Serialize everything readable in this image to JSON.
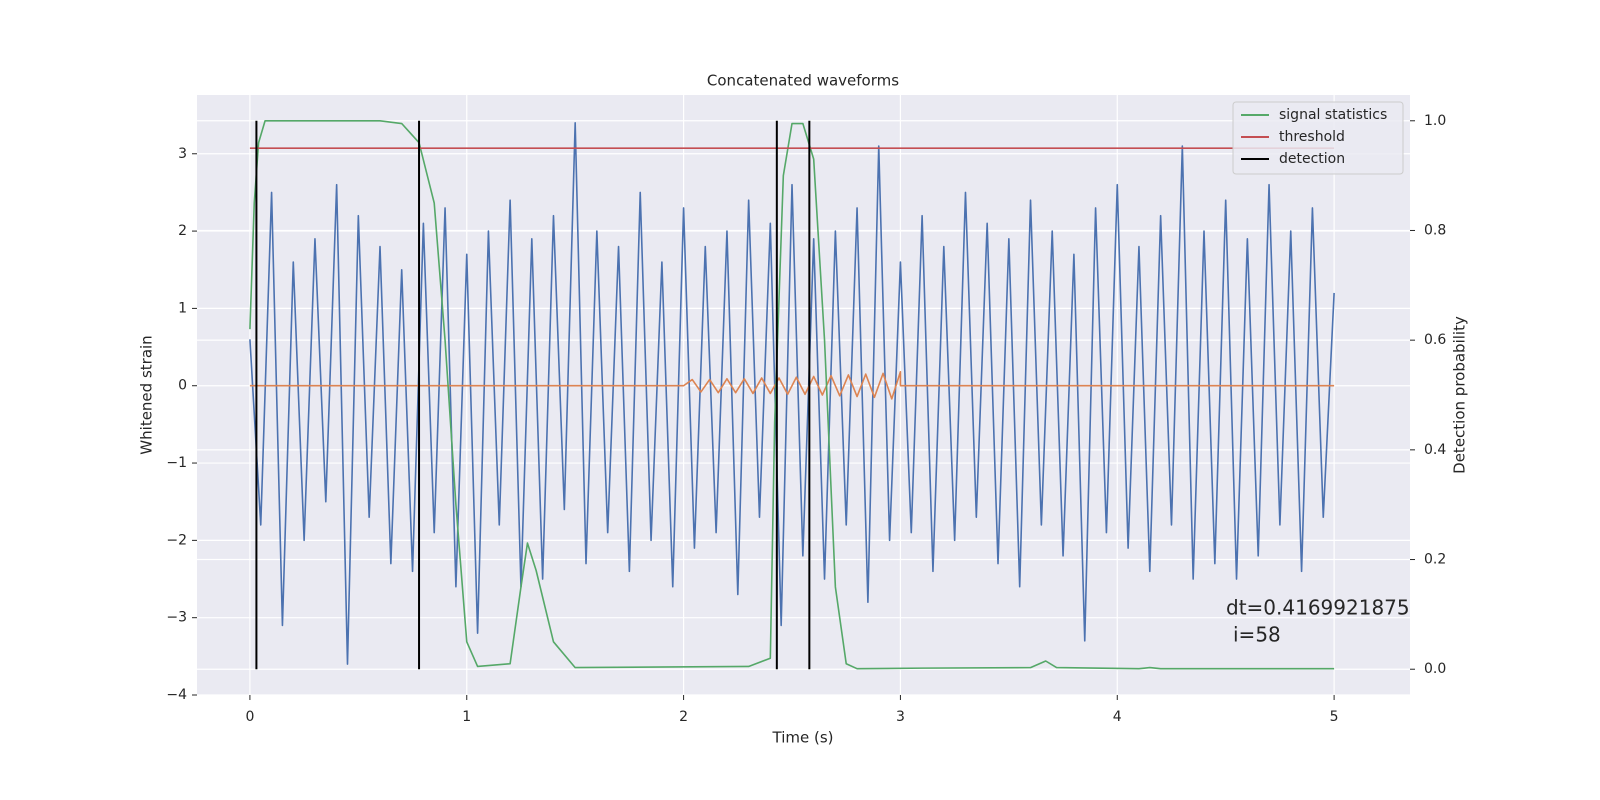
{
  "chart_data": {
    "type": "line",
    "title": "Concatenated waveforms",
    "x_label": "Time (s)",
    "y_label": "Whitened strain",
    "y2_label": "Detection probability",
    "xlim": [
      -0.244,
      5.35
    ],
    "ylim": [
      -4.0,
      3.76
    ],
    "y2lim": [
      -0.047,
      1.047
    ],
    "xticks": [
      0,
      1,
      2,
      3,
      4,
      5
    ],
    "yticks": [
      {
        "value": -4,
        "label": "−4"
      },
      {
        "value": -3,
        "label": "−3"
      },
      {
        "value": -2,
        "label": "−2"
      },
      {
        "value": -1,
        "label": "−1"
      },
      0,
      1,
      2,
      3
    ],
    "y2ticks": [
      {
        "value": 0,
        "label": "0.0"
      },
      {
        "value": 0.2,
        "label": "0.2"
      },
      {
        "value": 0.4,
        "label": "0.4"
      },
      {
        "value": 0.6,
        "label": "0.6"
      },
      {
        "value": 0.8,
        "label": "0.8"
      },
      {
        "value": 1.0,
        "label": "1.0"
      }
    ],
    "grid": true,
    "legend_position": "upper right",
    "annotation": [
      "dt=0.4169921875",
      "i=58"
    ],
    "series": [
      {
        "color": "#4c72b0",
        "axis": "y",
        "x": [
          0,
          0.05,
          0.1,
          0.15,
          0.2,
          0.25,
          0.3,
          0.35,
          0.4,
          0.45,
          0.5,
          0.55,
          0.6,
          0.65,
          0.7,
          0.75,
          0.8,
          0.85,
          0.9,
          0.95,
          1,
          1.05,
          1.1,
          1.15,
          1.2,
          1.25,
          1.3,
          1.35,
          1.4,
          1.45,
          1.5,
          1.55,
          1.6,
          1.65,
          1.7,
          1.75,
          1.8,
          1.85,
          1.9,
          1.95,
          2,
          2.05,
          2.1,
          2.15,
          2.2,
          2.25,
          2.3,
          2.35,
          2.4,
          2.45,
          2.5,
          2.55,
          2.6,
          2.65,
          2.7,
          2.75,
          2.8,
          2.85,
          2.9,
          2.95,
          3,
          3.05,
          3.1,
          3.15,
          3.2,
          3.25,
          3.3,
          3.35,
          3.4,
          3.45,
          3.5,
          3.55,
          3.6,
          3.65,
          3.7,
          3.75,
          3.8,
          3.85,
          3.9,
          3.95,
          4,
          4.05,
          4.1,
          4.15,
          4.2,
          4.25,
          4.3,
          4.35,
          4.4,
          4.45,
          4.5,
          4.55,
          4.6,
          4.65,
          4.7,
          4.75,
          4.8,
          4.85,
          4.9,
          4.95,
          5
        ],
        "values": [
          0.6,
          -1.8,
          2.5,
          -3.1,
          1.6,
          -2.0,
          1.9,
          -1.5,
          2.6,
          -3.6,
          2.2,
          -1.7,
          1.8,
          -2.3,
          1.5,
          -2.4,
          2.1,
          -1.9,
          2.3,
          -2.6,
          1.7,
          -3.2,
          2.0,
          -1.8,
          2.4,
          -2.6,
          1.9,
          -2.5,
          2.2,
          -1.6,
          3.4,
          -2.3,
          2.0,
          -1.9,
          1.8,
          -2.4,
          2.5,
          -2.0,
          1.6,
          -2.6,
          2.3,
          -2.1,
          1.8,
          -1.9,
          2.0,
          -2.7,
          2.4,
          -1.7,
          2.1,
          -3.1,
          2.6,
          -2.2,
          1.9,
          -2.5,
          2.0,
          -1.8,
          2.3,
          -2.8,
          3.1,
          -2.0,
          1.6,
          -1.9,
          2.2,
          -2.4,
          1.8,
          -2.0,
          2.5,
          -1.7,
          2.1,
          -2.3,
          1.9,
          -2.6,
          2.4,
          -1.8,
          2.0,
          -2.2,
          1.7,
          -3.3,
          2.3,
          -1.9,
          2.6,
          -2.1,
          1.8,
          -2.4,
          2.2,
          -1.8,
          3.1,
          -2.5,
          2.0,
          -2.3,
          2.4,
          -2.5,
          1.9,
          -2.2,
          2.6,
          -1.8,
          2.0,
          -2.4,
          2.3,
          -1.7,
          1.2
        ]
      },
      {
        "color": "#dd8452",
        "axis": "y",
        "x": [
          0,
          2,
          2.04,
          2.08,
          2.12,
          2.16,
          2.2,
          2.24,
          2.28,
          2.32,
          2.36,
          2.4,
          2.44,
          2.48,
          2.52,
          2.56,
          2.6,
          2.64,
          2.68,
          2.72,
          2.76,
          2.8,
          2.84,
          2.88,
          2.92,
          2.96,
          3,
          3,
          5
        ],
        "values": [
          0,
          0,
          0.08,
          -0.08,
          0.08,
          -0.09,
          0.09,
          -0.09,
          0.09,
          -0.1,
          0.1,
          -0.1,
          0.1,
          -0.11,
          0.11,
          -0.11,
          0.12,
          -0.12,
          0.13,
          -0.13,
          0.14,
          -0.14,
          0.15,
          -0.15,
          0.16,
          -0.17,
          0.18,
          0,
          0
        ]
      },
      {
        "name": "signal statistics",
        "color": "#55a868",
        "axis": "y2",
        "x": [
          0,
          0.02,
          0.04,
          0.07,
          0.6,
          0.7,
          0.78,
          0.85,
          0.9,
          0.95,
          1.0,
          1.05,
          1.2,
          1.25,
          1.28,
          1.32,
          1.4,
          1.5,
          2.3,
          2.4,
          2.42,
          2.46,
          2.5,
          2.55,
          2.6,
          2.65,
          2.7,
          2.75,
          2.8,
          3.1,
          3.6,
          3.67,
          3.72,
          4.1,
          4.15,
          4.2,
          5
        ],
        "values": [
          0.62,
          0.85,
          0.96,
          1.0,
          1.0,
          0.995,
          0.96,
          0.85,
          0.6,
          0.3,
          0.05,
          0.005,
          0.01,
          0.15,
          0.23,
          0.18,
          0.05,
          0.003,
          0.005,
          0.02,
          0.45,
          0.9,
          0.995,
          0.995,
          0.93,
          0.6,
          0.15,
          0.01,
          0.001,
          0.002,
          0.003,
          0.015,
          0.003,
          0.001,
          0.003,
          0.001,
          0.001
        ]
      },
      {
        "name": "threshold",
        "color": "#c44e52",
        "axis": "y2",
        "x": [
          0,
          5
        ],
        "values": [
          0.95,
          0.95
        ]
      },
      {
        "name": "detection",
        "color": "#000000",
        "axis": "y2",
        "type": "vline",
        "x": [
          0.03,
          0.78,
          2.43,
          2.58
        ],
        "span": [
          0,
          1
        ]
      }
    ]
  }
}
